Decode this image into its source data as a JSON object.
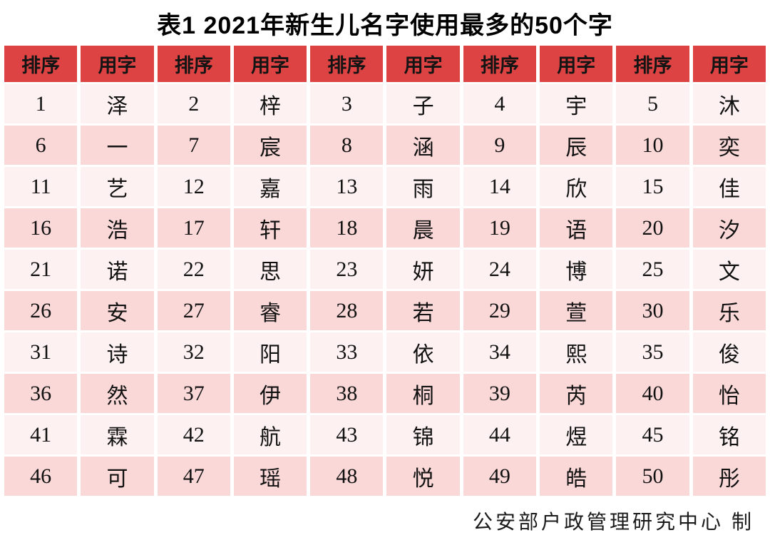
{
  "title": "表1 2021年新生儿名字使用最多的50个字",
  "table": {
    "header": [
      "排序",
      "用字",
      "排序",
      "用字",
      "排序",
      "用字",
      "排序",
      "用字",
      "排序",
      "用字"
    ],
    "rows": [
      [
        "1",
        "泽",
        "2",
        "梓",
        "3",
        "子",
        "4",
        "宇",
        "5",
        "沐"
      ],
      [
        "6",
        "一",
        "7",
        "宸",
        "8",
        "涵",
        "9",
        "辰",
        "10",
        "奕"
      ],
      [
        "11",
        "艺",
        "12",
        "嘉",
        "13",
        "雨",
        "14",
        "欣",
        "15",
        "佳"
      ],
      [
        "16",
        "浩",
        "17",
        "轩",
        "18",
        "晨",
        "19",
        "语",
        "20",
        "汐"
      ],
      [
        "21",
        "诺",
        "22",
        "思",
        "23",
        "妍",
        "24",
        "博",
        "25",
        "文"
      ],
      [
        "26",
        "安",
        "27",
        "睿",
        "28",
        "若",
        "29",
        "萱",
        "30",
        "乐"
      ],
      [
        "31",
        "诗",
        "32",
        "阳",
        "33",
        "依",
        "34",
        "熙",
        "35",
        "俊"
      ],
      [
        "36",
        "然",
        "37",
        "伊",
        "38",
        "桐",
        "39",
        "芮",
        "40",
        "怡"
      ],
      [
        "41",
        "霖",
        "42",
        "航",
        "43",
        "锦",
        "44",
        "煜",
        "45",
        "铭"
      ],
      [
        "46",
        "可",
        "47",
        "瑶",
        "48",
        "悦",
        "49",
        "皓",
        "50",
        "彤"
      ]
    ]
  },
  "footer": "公安部户政管理研究中心 制",
  "colors": {
    "header_bg": "#de4343",
    "row_light": "#fdf1f1",
    "row_dark": "#fbd8d8",
    "text": "#111111"
  },
  "chart_data": {
    "type": "table",
    "title": "表1 2021年新生儿名字使用最多的50个字",
    "column_headers": [
      "排序",
      "用字",
      "排序",
      "用字",
      "排序",
      "用字",
      "排序",
      "用字",
      "排序",
      "用字"
    ],
    "ranks": [
      1,
      2,
      3,
      4,
      5,
      6,
      7,
      8,
      9,
      10,
      11,
      12,
      13,
      14,
      15,
      16,
      17,
      18,
      19,
      20,
      21,
      22,
      23,
      24,
      25,
      26,
      27,
      28,
      29,
      30,
      31,
      32,
      33,
      34,
      35,
      36,
      37,
      38,
      39,
      40,
      41,
      42,
      43,
      44,
      45,
      46,
      47,
      48,
      49,
      50
    ],
    "characters_by_rank": [
      "泽",
      "梓",
      "子",
      "宇",
      "沐",
      "一",
      "宸",
      "涵",
      "辰",
      "奕",
      "艺",
      "嘉",
      "雨",
      "欣",
      "佳",
      "浩",
      "轩",
      "晨",
      "语",
      "汐",
      "诺",
      "思",
      "妍",
      "博",
      "文",
      "安",
      "睿",
      "若",
      "萱",
      "乐",
      "诗",
      "阳",
      "依",
      "熙",
      "俊",
      "然",
      "伊",
      "桐",
      "芮",
      "怡",
      "霖",
      "航",
      "锦",
      "煜",
      "铭",
      "可",
      "瑶",
      "悦",
      "皓",
      "彤"
    ],
    "source_note": "公安部户政管理研究中心 制",
    "layout": {
      "pairs_per_row": 5,
      "header_style": "red background, black bold text",
      "row_striping": "alternating very light pink / light pink"
    }
  }
}
